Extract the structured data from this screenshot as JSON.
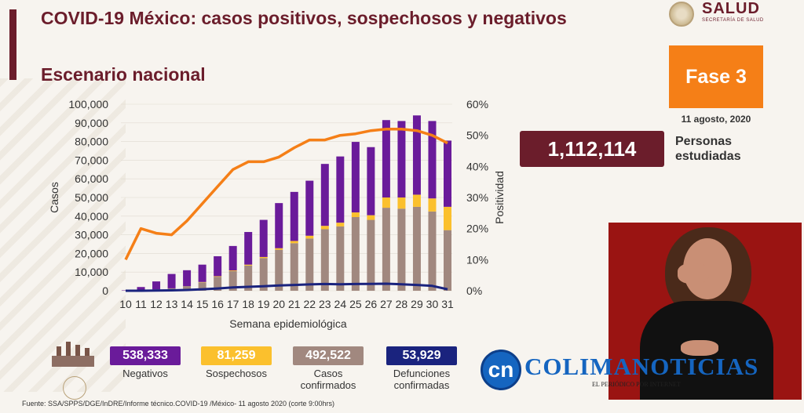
{
  "header": {
    "title": "COVID-19 México: casos positivos, sospechosos y negativos",
    "subtitle": "Escenario nacional"
  },
  "logo": {
    "name": "SALUD",
    "sub": "SECRETARÍA DE SALUD"
  },
  "phase": {
    "label": "Fase 3",
    "date": "11 agosto, 2020"
  },
  "total": {
    "value": "1,112,114",
    "label_line1": "Personas",
    "label_line2": "estudiadas"
  },
  "stats": [
    {
      "value": "538,333",
      "label": "Negativos",
      "color": "#6a1b9a"
    },
    {
      "value": "81,259",
      "label": "Sospechosos",
      "color": "#fbc02d"
    },
    {
      "value": "492,522",
      "label": "Casos confirmados",
      "color": "#a1887f"
    },
    {
      "value": "53,929",
      "label": "Defunciones confirmadas",
      "color": "#1a237e"
    }
  ],
  "source": "Fuente: SSA/SPPS/DGE/InDRE/Informe técnico.COVID-19 /México- 11 agosto 2020 (corte 9:00hrs)",
  "brand": {
    "initials": "cn",
    "name": "COLIMANOTICIAS",
    "tag": "EL PERIÓDICO POR INTERNET"
  },
  "chart_data": {
    "type": "bar",
    "xlabel": "Semana epidemiológica",
    "ylabel": "Casos",
    "y2label": "Positividad",
    "ylim": [
      0,
      100000
    ],
    "y2lim": [
      0,
      60
    ],
    "y_ticks": [
      "0",
      "10,000",
      "20,000",
      "30,000",
      "40,000",
      "50,000",
      "60,000",
      "70,000",
      "80,000",
      "90,000",
      "100,000"
    ],
    "y2_ticks": [
      "0%",
      "10%",
      "20%",
      "30%",
      "40%",
      "50%",
      "60%"
    ],
    "categories": [
      "10",
      "11",
      "12",
      "13",
      "14",
      "15",
      "16",
      "17",
      "18",
      "19",
      "20",
      "21",
      "22",
      "23",
      "24",
      "25",
      "26",
      "27",
      "28",
      "29",
      "30",
      "31"
    ],
    "series": [
      {
        "key": "confirmados",
        "color": "#a1887f",
        "values": [
          0,
          300,
          700,
          1300,
          2500,
          4500,
          7500,
          10500,
          13500,
          17500,
          22000,
          25500,
          28000,
          33000,
          34500,
          39500,
          38000,
          44500,
          44000,
          45000,
          42500,
          32500
        ]
      },
      {
        "key": "sospechosos",
        "color": "#fbc02d",
        "values": [
          0,
          0,
          0,
          0,
          0,
          200,
          300,
          400,
          500,
          600,
          800,
          1200,
          1500,
          1800,
          2000,
          2500,
          2500,
          5500,
          6000,
          6500,
          7000,
          12500
        ]
      },
      {
        "key": "negativos",
        "color": "#6a1b9a",
        "values": [
          200,
          1700,
          4300,
          7700,
          8500,
          9300,
          10700,
          13100,
          17500,
          19900,
          24200,
          26300,
          29500,
          33200,
          35500,
          37800,
          36500,
          41500,
          41000,
          42500,
          41500,
          35500
        ]
      },
      {
        "key": "positividad",
        "type": "line",
        "axis": "y2",
        "color": "#f57f17",
        "values": [
          10,
          20,
          18.5,
          18,
          22.5,
          28,
          33.5,
          39,
          41.5,
          41.5,
          43,
          46,
          48.5,
          48.5,
          50,
          50.5,
          51.5,
          52,
          52,
          51.5,
          50,
          47.5
        ]
      },
      {
        "key": "defunciones",
        "type": "line",
        "color": "#1a237e",
        "values": [
          0,
          0,
          100,
          200,
          400,
          800,
          1200,
          1800,
          2100,
          2400,
          2800,
          3100,
          3400,
          3600,
          3500,
          3600,
          3700,
          3800,
          3500,
          3100,
          2600,
          800
        ]
      }
    ]
  }
}
